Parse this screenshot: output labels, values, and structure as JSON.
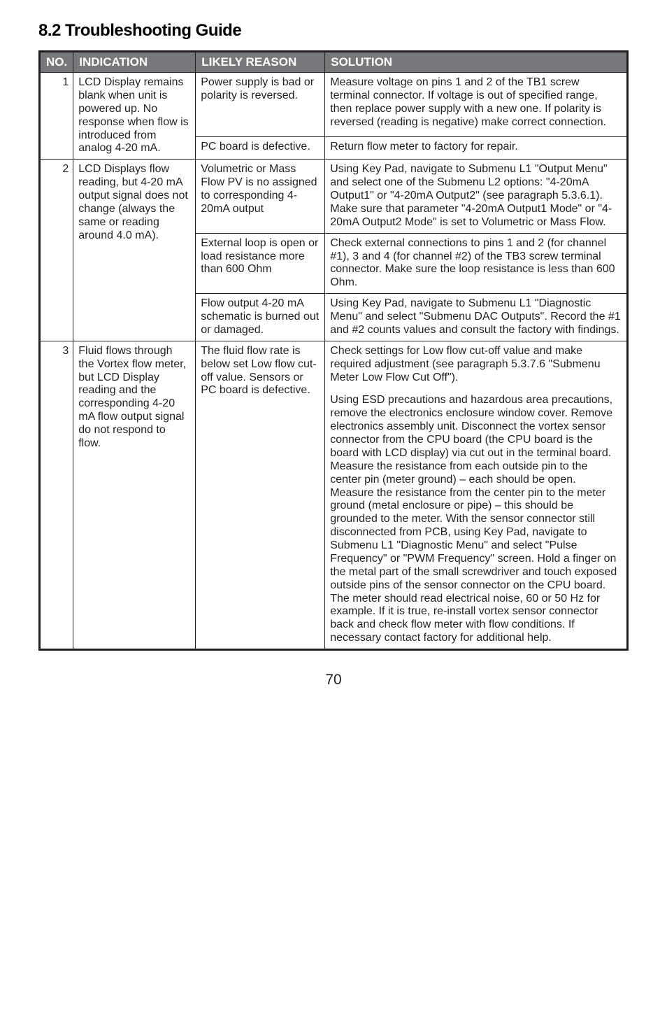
{
  "heading": "8.2 Troubleshooting Guide",
  "colors": {
    "header_bg": "#77787b",
    "header_text": "#ffffff",
    "border": "#231f20",
    "text": "#231f20",
    "page_bg": "#ffffff"
  },
  "columns": {
    "no": "NO.",
    "indication": "INDICATION",
    "reason": "LIKELY REASON",
    "solution": "SOLUTION"
  },
  "rows": {
    "r1": {
      "no": "1",
      "indication": "LCD Display remains blank when unit is powered up. No response when flow is introduced from analog 4-20 mA.",
      "reason1": "Power supply is bad or polarity is reversed.",
      "solution1": "Measure voltage on pins 1 and 2 of the TB1 screw terminal connector. If voltage is out of specified range, then replace power supply with a new one. If polarity is reversed (reading is negative) make correct connection.",
      "reason2": "PC board is defective.",
      "solution2": "Return flow meter to factory for repair."
    },
    "r2": {
      "no": "2",
      "indication": "LCD Displays flow reading, but 4-20 mA output signal does not change (always the same or reading around 4.0 mA).",
      "reason1": "Volumetric or Mass Flow PV is no assigned to corresponding 4-20mA output",
      "solution1": "Using Key Pad, navigate to Submenu L1 \"Output Menu\" and select one of the Submenu L2 options: \"4-20mA Output1\" or \"4-20mA Output2\" (see paragraph 5.3.6.1). Make sure that parameter \"4-20mA Output1 Mode\" or \"4-20mA Output2 Mode\" is set to Volumetric or Mass Flow.",
      "reason2": "External loop is open or load resistance more than 600 Ohm",
      "solution2": "Check external connections to pins 1 and 2 (for channel #1), 3 and 4 (for channel #2) of the TB3 screw terminal connector. Make sure the loop resistance is less than 600 Ohm.",
      "reason3": "Flow output 4-20 mA schematic is burned out or damaged.",
      "solution3": "Using Key Pad, navigate to Submenu L1 \"Diagnostic Menu\" and select \"Submenu DAC Outputs\". Record the #1 and #2 counts values and consult the factory with findings."
    },
    "r3": {
      "no": "3",
      "indication": "Fluid flows through the Vortex flow meter, but LCD Display reading and the corresponding 4-20 mA flow output signal do not respond to flow.",
      "reason": "The fluid flow rate is below set Low flow cut-off value. Sensors or PC board is defective.",
      "solution_p1": "Check settings for Low flow cut-off value and make required adjustment (see paragraph 5.3.7.6 \"Submenu Meter Low Flow Cut Off\").",
      "solution_p2": "Using ESD precautions and hazardous area precautions, remove the electronics enclosure window cover. Remove electronics assembly unit. Disconnect the vortex sensor connector from the CPU board (the CPU board is the board with LCD display) via cut out in the terminal board. Measure the resistance from each outside pin to the center pin (meter ground) – each should be open. Measure the resistance from the center pin to the meter ground (metal enclosure or pipe) – this should be grounded to the meter. With the sensor connector still disconnected from PCB, using Key Pad, navigate to Submenu L1 \"Diagnostic Menu\" and select \"Pulse Frequency\" or \"PWM Frequency\" screen. Hold a finger on the metal part of the small screwdriver and touch exposed outside pins of the sensor connector on the CPU board. The meter should read electrical noise, 60 or 50 Hz for example. If it is true, re-install vortex sensor connector back and check flow meter with flow conditions. If necessary contact factory for additional help."
    }
  },
  "page_number": "70"
}
